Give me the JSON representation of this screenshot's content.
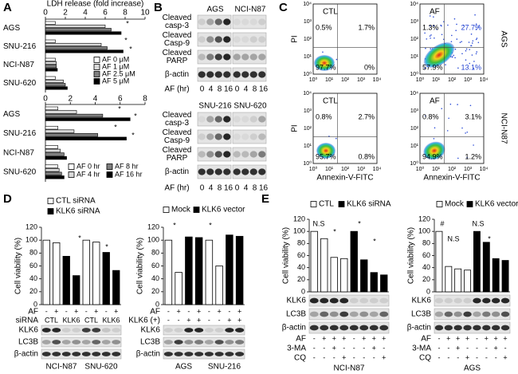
{
  "panel_labels": [
    "A",
    "B",
    "C",
    "D",
    "E"
  ],
  "chart_data": [
    {
      "type": "hbar",
      "title": "LDH release (fold increase)",
      "categories": [
        "AGS",
        "SNU-216",
        "NCI-N87",
        "SNU-620"
      ],
      "series": [
        {
          "name": "AF 0 μM",
          "color": "#ffffff",
          "values": [
            1,
            1,
            1,
            1
          ]
        },
        {
          "name": "AF 1 μM",
          "color": "#d9d9d9",
          "values": [
            6.0,
            5.6,
            1.1,
            1.8
          ]
        },
        {
          "name": "AF 2.5 μM",
          "color": "#7f7f7f",
          "values": [
            6.6,
            6.2,
            1.1,
            2.0
          ]
        },
        {
          "name": "AF 5 μM",
          "color": "#000000",
          "values": [
            7.6,
            7.8,
            1.2,
            2.2
          ]
        }
      ],
      "xlim": [
        0,
        10
      ],
      "xticks": [
        0,
        2,
        4,
        6,
        8,
        10
      ],
      "legend_columns": 1,
      "annotations": [
        "*",
        "*",
        "*"
      ]
    },
    {
      "type": "hbar",
      "categories": [
        "AGS",
        "SNU-216",
        "NCI-N87",
        "SNU-620"
      ],
      "series": [
        {
          "name": "AF 0 hr",
          "color": "#ffffff",
          "values": [
            1,
            1,
            1,
            1
          ]
        },
        {
          "name": "AF 4 hr",
          "color": "#d9d9d9",
          "values": [
            2.5,
            2.3,
            1.2,
            1.1
          ]
        },
        {
          "name": "AF 8 hr",
          "color": "#7f7f7f",
          "values": [
            4.6,
            4.2,
            1.5,
            1.3
          ]
        },
        {
          "name": "AF 16 hr",
          "color": "#000000",
          "values": [
            6.8,
            6.5,
            1.7,
            1.5
          ]
        }
      ],
      "xlim": [
        0,
        8
      ],
      "xticks": [
        0,
        2,
        4,
        6,
        8
      ],
      "legend_columns": 2,
      "annotations": [
        "*",
        "*",
        "*",
        "*"
      ]
    },
    {
      "type": "bar",
      "y_label": "Cell viability (%)",
      "categories": [
        null,
        null,
        null,
        null,
        null,
        null,
        null,
        null
      ],
      "series": [
        {
          "name": "CTL siRNA",
          "color": "#ffffff",
          "values": [
            100,
            96,
            null,
            null,
            100,
            97,
            null,
            null
          ]
        },
        {
          "name": "KLK6 siRNA",
          "color": "#000000",
          "values": [
            null,
            null,
            75,
            45,
            null,
            null,
            81,
            53
          ]
        }
      ],
      "ylim": [
        0,
        120
      ],
      "yticks": [
        0,
        20,
        40,
        60,
        80,
        100,
        120
      ],
      "legend_columns": 1,
      "conditions": [
        {
          "label": "AF",
          "values": [
            "-",
            "+",
            "-",
            "+",
            "-",
            "+",
            "-",
            "+"
          ]
        },
        {
          "label": "siRNA",
          "values": [
            "CTL",
            "KLK6",
            "CTL",
            "KLK6"
          ]
        }
      ],
      "blots": [
        "KLK6",
        "LC3B",
        "β-actin"
      ],
      "groups": [
        "NCI-N87",
        "SNU-620"
      ],
      "annotations": [
        "*",
        "*"
      ]
    },
    {
      "type": "bar",
      "y_label": "Cell viability (%)",
      "categories": [
        null,
        null,
        null,
        null,
        null,
        null,
        null,
        null
      ],
      "series": [
        {
          "name": "Mock",
          "color": "#ffffff",
          "values": [
            100,
            50,
            null,
            null,
            100,
            60,
            null,
            null
          ]
        },
        {
          "name": "KLK6 vector",
          "color": "#000000",
          "values": [
            null,
            null,
            105,
            104,
            null,
            null,
            108,
            106
          ]
        }
      ],
      "ylim": [
        0,
        120
      ],
      "yticks": [
        0,
        20,
        40,
        60,
        80,
        100,
        120
      ],
      "legend_columns": 2,
      "conditions": [
        {
          "label": "AF",
          "values": [
            "-",
            "+",
            "-",
            "+",
            "-",
            "+",
            "-",
            "+"
          ]
        },
        {
          "label": "KLK6 (+)",
          "values": [
            "-",
            "-",
            "+",
            "+",
            "-",
            "-",
            "+",
            "+"
          ]
        }
      ],
      "blots": [
        "KLK6",
        "LC3B",
        "β-actin"
      ],
      "groups": [
        "AGS",
        "SNU-216"
      ],
      "annotations": [
        "*",
        "*"
      ]
    },
    {
      "type": "bar",
      "y_label": "Cell viability (%)",
      "categories": [
        null,
        null,
        null,
        null,
        null,
        null,
        null,
        null
      ],
      "series": [
        {
          "name": "CTL",
          "color": "#ffffff",
          "values": [
            100,
            88,
            57,
            55,
            null,
            null,
            null,
            null
          ]
        },
        {
          "name": "KLK6 siRNA",
          "color": "#000000",
          "values": [
            null,
            null,
            null,
            null,
            100,
            53,
            32,
            28
          ]
        }
      ],
      "ylim": [
        0,
        120
      ],
      "yticks": [
        0,
        20,
        40,
        60,
        80,
        100,
        120
      ],
      "legend_columns": 2,
      "conditions": [
        {
          "label": "AF",
          "values": [
            "-",
            "+",
            "+",
            "+",
            "-",
            "+",
            "+",
            "+"
          ]
        },
        {
          "label": "3-MA",
          "values": [
            "-",
            "-",
            "+",
            "-",
            "-",
            "-",
            "+",
            "-"
          ]
        },
        {
          "label": "CQ",
          "values": [
            "-",
            "-",
            "-",
            "+",
            "-",
            "-",
            "-",
            "+"
          ]
        }
      ],
      "blots": [
        "KLK6",
        "LC3B",
        "β-actin"
      ],
      "groups": [
        "NCI-N87"
      ],
      "annotations": [
        "N.S",
        "*",
        "*",
        "*"
      ]
    },
    {
      "type": "bar",
      "y_label": "Cell viability (%)",
      "categories": [
        null,
        null,
        null,
        null,
        null,
        null,
        null,
        null
      ],
      "series": [
        {
          "name": "Mock",
          "color": "#ffffff",
          "values": [
            100,
            42,
            38,
            36,
            null,
            null,
            null,
            null
          ]
        },
        {
          "name": "KLK6 vector",
          "color": "#000000",
          "values": [
            null,
            null,
            null,
            null,
            100,
            82,
            55,
            52
          ]
        }
      ],
      "ylim": [
        0,
        120
      ],
      "yticks": [
        0,
        20,
        40,
        60,
        80,
        100,
        120
      ],
      "legend_columns": 2,
      "conditions": [
        {
          "label": "AF",
          "values": [
            "-",
            "+",
            "+",
            "+",
            "-",
            "+",
            "+",
            "+"
          ]
        },
        {
          "label": "3-MA",
          "values": [
            "-",
            "-",
            "+",
            "-",
            "-",
            "-",
            "+",
            "-"
          ]
        },
        {
          "label": "CQ",
          "values": [
            "-",
            "-",
            "-",
            "+",
            "-",
            "-",
            "-",
            "+"
          ]
        }
      ],
      "blots": [
        "KLK6",
        "LC3B",
        "β-actin"
      ],
      "groups": [
        "AGS"
      ],
      "annotations": [
        "#",
        "N.S",
        "N.S",
        "*"
      ]
    }
  ],
  "western_blots": [
    {
      "groups": [
        "AGS",
        "NCI-N87"
      ],
      "rows": [
        [
          "Cleaved",
          "casp-3"
        ],
        [
          "Cleaved",
          "Casp-9"
        ],
        [
          "Cleaved",
          "PARP"
        ],
        [
          "β-actin"
        ]
      ],
      "lane_label": "AF (hr)",
      "lanes": [
        0,
        4,
        8,
        16,
        0,
        4,
        8,
        16
      ]
    },
    {
      "groups": [
        "SNU-216",
        "SNU-620"
      ],
      "rows": [
        [
          "Cleaved",
          "casp-3"
        ],
        [
          "Cleaved",
          "Casp-9"
        ],
        [
          "Cleaved",
          "PARP"
        ],
        [
          "β-actin"
        ]
      ],
      "lane_label": "AF (hr)",
      "lanes": [
        0,
        4,
        8,
        16,
        0,
        4,
        8,
        16
      ]
    }
  ],
  "flow": {
    "y_label": "PI",
    "x_label": "Annexin-V-FITC",
    "ticks": [
      "10⁰",
      "10¹",
      "10²",
      "10³",
      "10⁴"
    ],
    "rows": [
      {
        "name": "AGS",
        "plots": [
          {
            "title": "CTL",
            "quadrants": [
              "0.5%",
              "1.7%",
              "97.7%",
              "0%"
            ]
          },
          {
            "title": "AF",
            "quadrants": [
              "1.3%",
              "27.7%",
              "57.9%",
              "13.1%"
            ]
          }
        ]
      },
      {
        "name": "NCI-N87",
        "plots": [
          {
            "title": "CTL",
            "quadrants": [
              "0.8%",
              "2.7%",
              "95.7%",
              "0.8%"
            ]
          },
          {
            "title": "AF",
            "quadrants": [
              "0.8%",
              "3.1%",
              "94.9%",
              "1.2%"
            ]
          }
        ]
      }
    ]
  }
}
